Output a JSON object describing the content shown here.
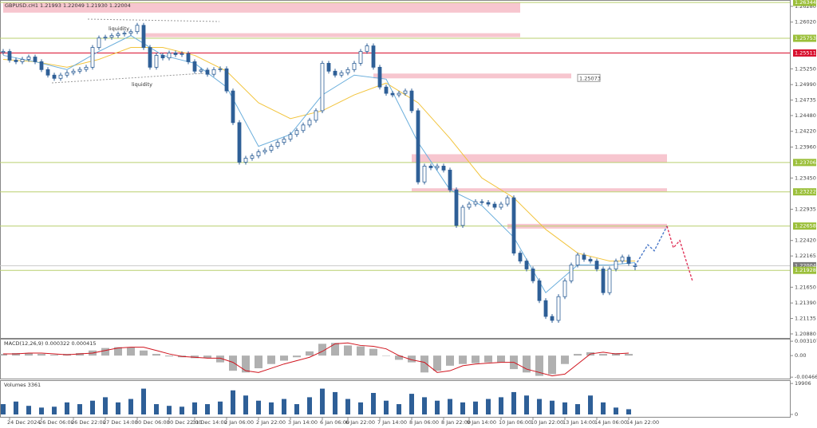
{
  "chart_data": {
    "type": "candlestick",
    "title": "GBPUSD.cH1  1.21993 1.22049 1.21930 1.22004",
    "categories": [
      null,
      "24 Dec 2024",
      null,
      null,
      null,
      null,
      "26 Dec 06:00",
      null,
      null,
      null,
      null,
      "26 Dec 22:00",
      null,
      null,
      null,
      null,
      "27 Dec 14:00",
      null,
      null,
      null,
      null,
      "30 Dec 06:00",
      null,
      null,
      null,
      null,
      "30 Dec 22:00",
      null,
      null,
      null,
      "31 Dec 14:00",
      null,
      null,
      null,
      null,
      "2 Jan 06:00",
      null,
      null,
      null,
      null,
      "2 Jan 22:00",
      null,
      null,
      null,
      null,
      "3 Jan 14:00",
      null,
      null,
      null,
      null,
      "6 Jan 06:00",
      null,
      null,
      null,
      "6 Jan 22:00",
      null,
      null,
      null,
      null,
      "7 Jan 14:00",
      null,
      null,
      null,
      null,
      "8 Jan 06:00",
      null,
      null,
      null,
      null,
      "8 Jan 22:00",
      null,
      null,
      null,
      "9 Jan 14:00",
      null,
      null,
      null,
      null,
      "10 Jan 06:00",
      null,
      null,
      null,
      null,
      "10 Jan 22:00",
      null,
      null,
      null,
      null,
      "13 Jan 14:00",
      null,
      null,
      null,
      null,
      "14 Jan 06:00",
      null,
      null,
      null,
      null,
      "14 Jan 22:00",
      null
    ],
    "open": [
      1.2552,
      1.25537,
      1.25393,
      1.25367,
      1.25406,
      1.25445,
      1.25367,
      1.25237,
      1.25146,
      1.25093,
      1.25146,
      1.25185,
      1.25211,
      1.2524,
      1.25276,
      1.25602,
      1.25758,
      1.25771,
      1.25798,
      1.25824,
      1.25837,
      1.25863,
      1.25967,
      1.25602,
      1.25276,
      1.25472,
      1.2543,
      1.2551,
      1.25485,
      1.25498,
      1.25367,
      1.25211,
      1.2523,
      1.2516,
      1.25237,
      1.2525,
      1.24885,
      1.24363,
      1.23711,
      1.23776,
      1.23815,
      1.23881,
      1.23907,
      1.23972,
      1.24037,
      1.24089,
      1.24168,
      1.24233,
      1.24324,
      1.24402,
      1.24559,
      1.25341,
      1.25211,
      1.25146,
      1.25185,
      1.25237,
      1.25341,
      1.25537,
      1.25628,
      1.25276,
      1.2495,
      1.24846,
      1.2482,
      1.24846,
      1.24885,
      1.24559,
      1.23385,
      1.23646,
      1.2362,
      1.23646,
      1.23581,
      1.23255,
      1.22668,
      1.22968,
      1.2302,
      1.23059,
      1.23046,
      1.2302,
      1.22968,
      1.2302,
      1.23124,
      1.22212,
      1.22081,
      1.21951,
      1.21755,
      1.21429,
      1.21168,
      1.21103,
      1.21494,
      1.21755,
      1.22016,
      1.2218,
      1.2211,
      1.22081,
      1.21951,
      1.2156,
      1.21951,
      1.22081,
      1.22146,
      1.21993
    ],
    "high": [
      1.25577,
      1.25577,
      1.25433,
      1.25446,
      1.25485,
      1.25485,
      1.25407,
      1.25277,
      1.25186,
      1.25186,
      1.25225,
      1.25251,
      1.2528,
      1.25316,
      1.25642,
      1.25798,
      1.25811,
      1.25838,
      1.25864,
      1.25877,
      1.25903,
      1.26007,
      1.26007,
      1.25642,
      1.25512,
      1.25512,
      1.2555,
      1.2555,
      1.25538,
      1.25538,
      1.25407,
      1.2527,
      1.2527,
      1.25277,
      1.2529,
      1.2529,
      1.24925,
      1.24403,
      1.23816,
      1.23855,
      1.23921,
      1.23947,
      1.24012,
      1.24077,
      1.24129,
      1.24208,
      1.24273,
      1.24364,
      1.24442,
      1.24599,
      1.25381,
      1.25381,
      1.25251,
      1.25225,
      1.25277,
      1.25381,
      1.25577,
      1.25668,
      1.25668,
      1.25316,
      1.2499,
      1.24886,
      1.24886,
      1.24925,
      1.24925,
      1.24599,
      1.23686,
      1.23686,
      1.23686,
      1.23686,
      1.23621,
      1.23295,
      1.23008,
      1.2306,
      1.23099,
      1.23099,
      1.23086,
      1.2306,
      1.2306,
      1.23164,
      1.23164,
      1.22252,
      1.22121,
      1.21991,
      1.21795,
      1.21469,
      1.21208,
      1.21534,
      1.21795,
      1.22056,
      1.2222,
      1.2222,
      1.2215,
      1.22121,
      1.21991,
      1.21991,
      1.22121,
      1.22186,
      1.22186,
      1.22049
    ],
    "low": [
      1.2548,
      1.25353,
      1.25327,
      1.25327,
      1.25366,
      1.25327,
      1.25197,
      1.25106,
      1.25053,
      1.25053,
      1.25106,
      1.25145,
      1.25171,
      1.252,
      1.25236,
      1.25562,
      1.25718,
      1.25731,
      1.25758,
      1.25784,
      1.25797,
      1.25823,
      1.25562,
      1.25236,
      1.25236,
      1.2539,
      1.2539,
      1.25445,
      1.25445,
      1.25327,
      1.25171,
      1.25171,
      1.2512,
      1.2512,
      1.25197,
      1.24845,
      1.24323,
      1.23671,
      1.23671,
      1.23736,
      1.23775,
      1.23841,
      1.23867,
      1.23932,
      1.23997,
      1.24049,
      1.24128,
      1.24193,
      1.24284,
      1.24362,
      1.24519,
      1.25171,
      1.25106,
      1.25106,
      1.25145,
      1.25197,
      1.25301,
      1.25497,
      1.25236,
      1.2491,
      1.24806,
      1.2478,
      1.2478,
      1.24806,
      1.24519,
      1.23345,
      1.23345,
      1.2358,
      1.2358,
      1.23541,
      1.23215,
      1.22628,
      1.22628,
      1.22928,
      1.2298,
      1.23006,
      1.2298,
      1.22928,
      1.22928,
      1.2298,
      1.22172,
      1.22041,
      1.21911,
      1.21715,
      1.21389,
      1.21128,
      1.21063,
      1.21063,
      1.21454,
      1.21715,
      1.21976,
      1.2207,
      1.22041,
      1.21911,
      1.2152,
      1.2152,
      1.21911,
      1.22041,
      1.22002,
      1.2193
    ],
    "close": [
      1.25537,
      1.25393,
      1.25367,
      1.25406,
      1.25445,
      1.25367,
      1.25237,
      1.25146,
      1.25093,
      1.25146,
      1.25185,
      1.25211,
      1.2524,
      1.25276,
      1.25602,
      1.25758,
      1.25771,
      1.25798,
      1.25824,
      1.25837,
      1.25863,
      1.25967,
      1.25602,
      1.25276,
      1.25472,
      1.2543,
      1.2551,
      1.25485,
      1.25498,
      1.25367,
      1.25211,
      1.2523,
      1.2516,
      1.25237,
      1.2525,
      1.24885,
      1.24363,
      1.23711,
      1.23776,
      1.23815,
      1.23881,
      1.23907,
      1.23972,
      1.24037,
      1.24089,
      1.24168,
      1.24233,
      1.24324,
      1.24402,
      1.24559,
      1.25341,
      1.25211,
      1.25146,
      1.25185,
      1.25237,
      1.25341,
      1.25537,
      1.25628,
      1.25276,
      1.2495,
      1.24846,
      1.2482,
      1.24846,
      1.24885,
      1.24559,
      1.23385,
      1.23646,
      1.2362,
      1.23646,
      1.23581,
      1.23255,
      1.22668,
      1.22968,
      1.2302,
      1.23059,
      1.23046,
      1.2302,
      1.22968,
      1.2302,
      1.23124,
      1.22212,
      1.22081,
      1.21951,
      1.21755,
      1.21429,
      1.21168,
      1.21103,
      1.21494,
      1.21755,
      1.22016,
      1.2218,
      1.2211,
      1.22081,
      1.21951,
      1.2156,
      1.21951,
      1.22081,
      1.22146,
      1.22042,
      1.22004
    ],
    "candle_color": "#2e5f97",
    "ylim": [
      1.2084,
      1.26345
    ],
    "yticks": [
      {
        "value": 1.2628,
        "label": "1.26280"
      },
      {
        "value": 1.2602,
        "label": "1.26020"
      },
      {
        "value": 1.2525,
        "label": "1.25250"
      },
      {
        "value": 1.2499,
        "label": "1.24990"
      },
      {
        "value": 1.24735,
        "label": "1.24735"
      },
      {
        "value": 1.2448,
        "label": "1.24480"
      },
      {
        "value": 1.2422,
        "label": "1.24220"
      },
      {
        "value": 1.2396,
        "label": "1.23960"
      },
      {
        "value": 1.2345,
        "label": "1.23450"
      },
      {
        "value": 1.22935,
        "label": "1.22935"
      },
      {
        "value": 1.2242,
        "label": "1.22420"
      },
      {
        "value": 1.22165,
        "label": "1.22165"
      },
      {
        "value": 1.2165,
        "label": "1.21650"
      },
      {
        "value": 1.2139,
        "label": "1.21390"
      },
      {
        "value": 1.21135,
        "label": "1.21135"
      },
      {
        "value": 1.2088,
        "label": "1.20880"
      }
    ],
    "moving_averages": [
      {
        "color": "#f2c43d",
        "x": [
          0,
          5,
          10,
          15,
          20,
          25,
          30,
          35,
          40,
          45,
          50,
          55,
          60,
          65,
          70,
          75,
          80,
          85,
          90,
          95,
          99
        ],
        "values": [
          1.25406,
          1.25367,
          1.25276,
          1.25406,
          1.25602,
          1.25602,
          1.25472,
          1.25211,
          1.2469,
          1.24429,
          1.24559,
          1.2482,
          1.25015,
          1.2469,
          1.24102,
          1.2345,
          1.23124,
          1.22603,
          1.22212,
          1.22081,
          1.22081
        ]
      },
      {
        "color": "#6aaedc",
        "x": [
          0,
          5,
          10,
          15,
          20,
          25,
          30,
          35,
          40,
          45,
          50,
          55,
          60,
          65,
          70,
          75,
          80,
          85,
          90,
          95,
          99
        ],
        "values": [
          1.25472,
          1.25367,
          1.25237,
          1.25537,
          1.25798,
          1.25472,
          1.25341,
          1.2495,
          1.23972,
          1.24168,
          1.2482,
          1.25146,
          1.2508,
          1.24037,
          1.23255,
          1.22994,
          1.22472,
          1.21559,
          1.22016,
          1.22016,
          1.22055
        ]
      }
    ],
    "zones": [
      {
        "from": 1.26176,
        "to": 1.26345,
        "start": 0,
        "end": 81
      },
      {
        "from": 1.25772,
        "to": 1.25837,
        "start": 22,
        "end": 81
      },
      {
        "from": 1.25093,
        "to": 1.25172,
        "start": 58,
        "end": 89,
        "label": 1.25073
      },
      {
        "from": 1.23711,
        "to": 1.23842,
        "start": 64,
        "end": 104
      },
      {
        "from": 1.23229,
        "to": 1.23281,
        "start": 64,
        "end": 104
      },
      {
        "from": 1.22616,
        "to": 1.22694,
        "start": 79,
        "end": 104
      }
    ],
    "zone_color": "#f7c6cf",
    "levels": [
      {
        "value": 1.26344,
        "color": "#b9cf6f",
        "label_color": "#9bbf3a"
      },
      {
        "value": 1.25753,
        "color": "#b9cf6f",
        "label_color": "#9bbf3a"
      },
      {
        "value": 1.25511,
        "color": "#d8102e",
        "label_color": "#d8102e"
      },
      {
        "value": 1.23706,
        "color": "#b9cf6f",
        "label_color": "#9bbf3a"
      },
      {
        "value": 1.23222,
        "color": "#b9cf6f",
        "label_color": "#9bbf3a"
      },
      {
        "value": 1.22658,
        "color": "#b9cf6f",
        "label_color": "#9bbf3a"
      },
      {
        "value": 1.22004,
        "color": "#c8c8c8",
        "label_color": "#7a7a7a"
      },
      {
        "value": 1.21928,
        "color": "#b9cf6f",
        "label_color": "#9bbf3a"
      }
    ],
    "annotations": [
      "liquidity",
      "liquidity"
    ],
    "forecast": [
      {
        "color": "#4a78c8",
        "x": [
          99,
          101,
          102,
          104
        ],
        "values": [
          1.22004,
          1.2235,
          1.2225,
          1.22658
        ]
      },
      {
        "color": "#e0345a",
        "x": [
          104,
          105,
          106,
          108
        ],
        "values": [
          1.22658,
          1.223,
          1.2242,
          1.2175
        ]
      }
    ],
    "macd": {
      "title": "MACD(12,26,9) 0.000322 0.000415",
      "ylim": [
        -0.0048,
        0.0033
      ],
      "yticks": [
        0.003107,
        {
          "value": 0,
          "label": "0.00"
        },
        -0.00466
      ],
      "x": [
        0,
        2,
        4,
        6,
        8,
        10,
        12,
        14,
        16,
        18,
        20,
        22,
        24,
        26,
        28,
        30,
        32,
        34,
        36,
        38,
        40,
        42,
        44,
        46,
        48,
        50,
        52,
        54,
        56,
        58,
        60,
        62,
        64,
        66,
        68,
        70,
        72,
        74,
        76,
        78,
        80,
        82,
        84,
        86,
        88,
        90,
        92,
        94,
        96,
        98
      ],
      "histogram": [
        0.00036,
        0.00055,
        0.00055,
        0.00036,
        0.00018,
        0.00036,
        0.00055,
        0.0011,
        0.00164,
        0.00182,
        0.00182,
        0.0011,
        0.00036,
        -0.00018,
        -0.00036,
        -0.00055,
        -0.00055,
        -0.00146,
        -0.00328,
        -0.00365,
        -0.00274,
        -0.00182,
        -0.0011,
        -0.00036,
        0.00091,
        0.00255,
        0.00274,
        0.00219,
        0.002,
        0.00146,
        0,
        -0.00091,
        -0.00146,
        -0.00365,
        -0.00328,
        -0.00219,
        -0.00182,
        -0.00164,
        -0.00146,
        -0.00146,
        -0.00292,
        -0.00365,
        -0.00438,
        -0.00401,
        -0.00182,
        0.00036,
        0.00073,
        0.00036,
        0.00055,
        0.00036
      ],
      "signal": [
        0.00036,
        0.00036,
        0.00055,
        0.00055,
        0.00036,
        0.00018,
        0.00036,
        0.00055,
        0.0011,
        0.00164,
        0.00182,
        0.00182,
        0.0011,
        0.00036,
        -0.00018,
        -0.00036,
        -0.00055,
        -0.00055,
        -0.00146,
        -0.00328,
        -0.00365,
        -0.00274,
        -0.00182,
        -0.0011,
        -0.00036,
        0.00091,
        0.00255,
        0.00274,
        0.00219,
        0.002,
        0.00146,
        0,
        -0.00091,
        -0.00146,
        -0.00365,
        -0.00328,
        -0.00219,
        -0.00182,
        -0.00164,
        -0.00146,
        -0.00146,
        -0.00292,
        -0.00365,
        -0.00438,
        -0.00401,
        -0.00182,
        0.00036,
        0.00073,
        0.00036,
        0.00055
      ],
      "histogram_color": "#b0b0b0",
      "signal_color": "#d0141e"
    },
    "volumes": {
      "title": "Volumes 3361",
      "ylim": [
        0,
        21000
      ],
      "yticks": [
        19906,
        0
      ],
      "x": [
        0,
        2,
        4,
        6,
        8,
        10,
        12,
        14,
        16,
        18,
        20,
        22,
        24,
        26,
        28,
        30,
        32,
        34,
        36,
        38,
        40,
        42,
        44,
        46,
        48,
        50,
        52,
        54,
        56,
        58,
        60,
        62,
        64,
        66,
        68,
        70,
        72,
        74,
        76,
        78,
        80,
        82,
        84,
        86,
        88,
        90,
        92,
        94,
        96,
        98
      ],
      "values": [
        6636,
        8295,
        5530,
        4424,
        4977,
        7742,
        6636,
        8848,
        11060,
        7742,
        9954,
        16590,
        6636,
        5530,
        4977,
        7742,
        6636,
        8295,
        15484,
        12166,
        8848,
        7742,
        9954,
        6636,
        11060,
        16590,
        14378,
        9954,
        7742,
        13825,
        8848,
        6636,
        13272,
        11060,
        8848,
        9954,
        7742,
        8295,
        9954,
        11060,
        14378,
        12166,
        9954,
        8848,
        7742,
        6636,
        12166,
        7742,
        4424,
        3361
      ],
      "color": "#2e5f97"
    }
  }
}
